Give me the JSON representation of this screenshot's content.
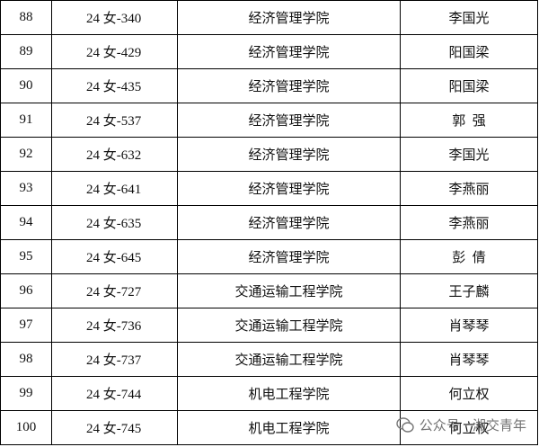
{
  "table": {
    "rows": [
      [
        "88",
        "24 女-340",
        "经济管理学院",
        "李国光"
      ],
      [
        "89",
        "24 女-429",
        "经济管理学院",
        "阳国梁"
      ],
      [
        "90",
        "24 女-435",
        "经济管理学院",
        "阳国梁"
      ],
      [
        "91",
        "24 女-537",
        "经济管理学院",
        "郭  强"
      ],
      [
        "92",
        "24 女-632",
        "经济管理学院",
        "李国光"
      ],
      [
        "93",
        "24 女-641",
        "经济管理学院",
        "李燕丽"
      ],
      [
        "94",
        "24 女-635",
        "经济管理学院",
        "李燕丽"
      ],
      [
        "95",
        "24 女-645",
        "经济管理学院",
        "彭  倩"
      ],
      [
        "96",
        "24 女-727",
        "交通运输工程学院",
        "王子麟"
      ],
      [
        "97",
        "24 女-736",
        "交通运输工程学院",
        "肖琴琴"
      ],
      [
        "98",
        "24 女-737",
        "交通运输工程学院",
        "肖琴琴"
      ],
      [
        "99",
        "24 女-744",
        "机电工程学院",
        "何立权"
      ],
      [
        "100",
        "24 女-745",
        "机电工程学院",
        "何立权"
      ]
    ]
  },
  "watermark": "公众号 · 湘交青年"
}
